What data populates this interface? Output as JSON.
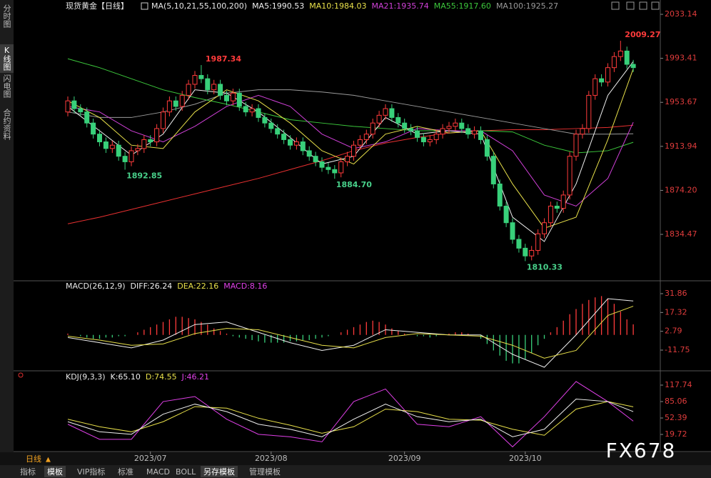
{
  "header": {
    "title": "现货黄金【日线】"
  },
  "sidebar": [
    "分时图",
    "K线图",
    "闪电图",
    "合约资料"
  ],
  "footer": {
    "period": "日线",
    "tabs": [
      "指标",
      "模板",
      "VIP指标",
      "标准",
      "MACD",
      "BOLL",
      "另存模板",
      "管理模板"
    ]
  },
  "watermark": "FX678",
  "chart_data": [
    {
      "type": "candlestick",
      "title": "MA(5,10,21,55,100,200)",
      "up_color": "#ff3b3b",
      "down_color": "#38d07a",
      "open": [
        1945,
        1955,
        1948,
        1945,
        1935,
        1925,
        1918,
        1912,
        1915,
        1905,
        1900,
        1910,
        1912,
        1920,
        1918,
        1930,
        1945,
        1955,
        1950,
        1960,
        1970,
        1978,
        1975,
        1965,
        1970,
        1960,
        1955,
        1962,
        1950,
        1945,
        1948,
        1940,
        1935,
        1930,
        1925,
        1920,
        1915,
        1918,
        1910,
        1905,
        1900,
        1895,
        1893,
        1890,
        1900,
        1905,
        1915,
        1920,
        1925,
        1935,
        1942,
        1948,
        1940,
        1935,
        1930,
        1928,
        1922,
        1918,
        1920,
        1925,
        1930,
        1932,
        1935,
        1930,
        1925,
        1928,
        1920,
        1905,
        1880,
        1860,
        1845,
        1830,
        1822,
        1815,
        1820,
        1835,
        1845,
        1860,
        1858,
        1870,
        1905,
        1925,
        1930,
        1960,
        1975,
        1972,
        1985,
        1995,
        2000,
        1988
      ],
      "high": [
        1959,
        1959,
        1952,
        1949,
        1939,
        1929,
        1922,
        1919,
        1919,
        1909,
        1914,
        1916,
        1924,
        1924,
        1934,
        1949,
        1959,
        1959,
        1964,
        1974,
        1982,
        1987.34,
        1979,
        1974,
        1974,
        1964,
        1966,
        1966,
        1954,
        1952,
        1952,
        1944,
        1939,
        1934,
        1929,
        1924,
        1922,
        1922,
        1914,
        1909,
        1904,
        1899,
        1897,
        1904,
        1909,
        1919,
        1924,
        1929,
        1939,
        1946,
        1952,
        1952,
        1944,
        1939,
        1934,
        1932,
        1926,
        1924,
        1929,
        1934,
        1936,
        1939,
        1939,
        1934,
        1932,
        1932,
        1924,
        1909,
        1884,
        1864,
        1849,
        1834,
        1826,
        1824,
        1839,
        1849,
        1864,
        1864,
        1874,
        1909,
        1929,
        1934,
        1964,
        1979,
        1979,
        1989,
        1999,
        2009.27,
        2004,
        1992
      ],
      "low": [
        1941,
        1944,
        1941,
        1931,
        1921,
        1914,
        1908,
        1908,
        1901,
        1892.85,
        1896,
        1906,
        1908,
        1914,
        1914,
        1926,
        1941,
        1946,
        1946,
        1956,
        1966,
        1971,
        1961,
        1961,
        1956,
        1951,
        1951,
        1946,
        1941,
        1941,
        1936,
        1931,
        1926,
        1921,
        1916,
        1911,
        1911,
        1906,
        1901,
        1896,
        1891,
        1889,
        1884.7,
        1886,
        1896,
        1901,
        1911,
        1916,
        1921,
        1931,
        1938,
        1936,
        1931,
        1926,
        1924,
        1918,
        1914,
        1914,
        1916,
        1921,
        1926,
        1928,
        1926,
        1921,
        1921,
        1916,
        1901,
        1876,
        1856,
        1841,
        1826,
        1818,
        1810.33,
        1811,
        1816,
        1831,
        1841,
        1854,
        1854,
        1866,
        1901,
        1921,
        1926,
        1956,
        1968,
        1968,
        1981,
        1991,
        1984,
        1981
      ],
      "close": [
        1955,
        1948,
        1945,
        1935,
        1925,
        1918,
        1912,
        1915,
        1905,
        1900,
        1910,
        1912,
        1920,
        1918,
        1930,
        1945,
        1955,
        1950,
        1960,
        1970,
        1978,
        1975,
        1965,
        1970,
        1960,
        1955,
        1962,
        1950,
        1945,
        1948,
        1940,
        1935,
        1930,
        1925,
        1920,
        1915,
        1918,
        1910,
        1905,
        1900,
        1895,
        1893,
        1890,
        1900,
        1905,
        1915,
        1920,
        1925,
        1935,
        1942,
        1948,
        1940,
        1935,
        1930,
        1928,
        1922,
        1918,
        1920,
        1925,
        1930,
        1932,
        1935,
        1930,
        1925,
        1928,
        1920,
        1905,
        1880,
        1860,
        1845,
        1830,
        1822,
        1815,
        1820,
        1835,
        1845,
        1860,
        1858,
        1870,
        1905,
        1925,
        1930,
        1960,
        1975,
        1972,
        1985,
        1995,
        2000,
        1988,
        1985
      ],
      "ylim": [
        1793.2,
        2036.4
      ],
      "yticks": [
        1834.47,
        {
          "value": 1874.2,
          "label": "1874.20"
        },
        1913.94,
        1953.67,
        1993.41,
        2033.14
      ],
      "series": [
        {
          "name": "MA5:1990.53",
          "color": "#f0f0f0",
          "x": [
            0,
            5,
            10,
            15,
            20,
            25,
            30,
            35,
            40,
            45,
            50,
            55,
            60,
            65,
            70,
            75,
            80,
            85,
            89
          ],
          "values": [
            1950,
            1928,
            1906,
            1925,
            1965,
            1962,
            1945,
            1922,
            1898,
            1905,
            1940,
            1925,
            1928,
            1925,
            1850,
            1828,
            1880,
            1960,
            1990.53
          ]
        },
        {
          "name": "MA10:1984.03",
          "color": "#e8e04a",
          "x": [
            0,
            5,
            10,
            15,
            20,
            25,
            30,
            35,
            40,
            45,
            50,
            55,
            60,
            65,
            70,
            75,
            80,
            85,
            89
          ],
          "values": [
            1955,
            1940,
            1915,
            1912,
            1945,
            1965,
            1955,
            1935,
            1910,
            1898,
            1925,
            1932,
            1926,
            1928,
            1880,
            1840,
            1850,
            1920,
            1984.03
          ]
        },
        {
          "name": "MA21:1935.74",
          "color": "#d040d8",
          "x": [
            0,
            5,
            10,
            15,
            20,
            25,
            30,
            35,
            40,
            45,
            50,
            55,
            60,
            65,
            70,
            75,
            80,
            85,
            89
          ],
          "values": [
            1950,
            1945,
            1928,
            1918,
            1932,
            1950,
            1960,
            1950,
            1925,
            1912,
            1918,
            1930,
            1928,
            1928,
            1910,
            1870,
            1860,
            1885,
            1935.74
          ]
        },
        {
          "name": "MA55:1917.60",
          "color": "#3cc83c",
          "x": [
            0,
            5,
            10,
            15,
            20,
            25,
            30,
            35,
            40,
            45,
            50,
            55,
            60,
            65,
            70,
            75,
            80,
            85,
            89
          ],
          "values": [
            1993,
            1985,
            1975,
            1965,
            1958,
            1952,
            1945,
            1938,
            1935,
            1932,
            1930,
            1928,
            1928,
            1928,
            1927,
            1915,
            1908,
            1910,
            1917.6
          ]
        },
        {
          "name": "MA100:1925.27",
          "color": "#9a9a9a",
          "x": [
            0,
            5,
            10,
            15,
            20,
            25,
            30,
            35,
            40,
            45,
            50,
            55,
            60,
            65,
            70,
            75,
            80,
            85,
            89
          ],
          "values": [
            1945,
            1940,
            1940,
            1945,
            1952,
            1962,
            1965,
            1965,
            1963,
            1960,
            1955,
            1950,
            1945,
            1940,
            1935,
            1930,
            1925,
            1925,
            1925.27
          ]
        },
        {
          "color": "#e83030",
          "x": [
            0,
            5,
            10,
            15,
            20,
            25,
            30,
            35,
            40,
            45,
            50,
            55,
            60,
            65,
            70,
            75,
            80,
            85,
            89
          ],
          "values": [
            1844,
            1850,
            1857,
            1864,
            1871,
            1878,
            1885,
            1893,
            1901,
            1910,
            1917,
            1922,
            1926,
            1928,
            1929,
            1929,
            1930,
            1931,
            1933
          ]
        }
      ],
      "annotations": [
        {
          "x": 87,
          "value": 2009.27,
          "label": "2009.27",
          "color": "#ff3b3b"
        },
        {
          "x": 21,
          "value": 1987.34,
          "label": "1987.34",
          "color": "#ff3b3b"
        },
        {
          "x": 9,
          "value": 1892.85,
          "label": "1892.85",
          "color": "#48d08a"
        },
        {
          "x": 42,
          "value": 1884.7,
          "label": "1884.70",
          "color": "#48d08a"
        },
        {
          "x": 72,
          "value": 1810.33,
          "label": "1810.33",
          "color": "#48d08a"
        }
      ]
    },
    {
      "type": "macd",
      "title": "MACD(26,12,9)",
      "ylim": [
        -27.2,
        40.7
      ],
      "yticks": [
        31.86,
        17.32,
        2.79,
        -11.75
      ],
      "series": [
        {
          "name": "DIFF:26.24",
          "color": "#f0f0f0",
          "x": [
            0,
            5,
            10,
            15,
            20,
            25,
            30,
            35,
            40,
            45,
            50,
            55,
            60,
            65,
            70,
            75,
            80,
            85,
            89
          ],
          "values": [
            -2,
            -6,
            -10,
            -4,
            8,
            10,
            2,
            -6,
            -12,
            -8,
            4,
            2,
            0,
            0,
            -15,
            -25,
            0,
            28,
            26.24
          ]
        },
        {
          "name": "DEA:22.16",
          "color": "#e8e04a",
          "x": [
            0,
            5,
            10,
            15,
            20,
            25,
            30,
            35,
            40,
            45,
            50,
            55,
            60,
            65,
            70,
            75,
            80,
            85,
            89
          ],
          "values": [
            -1,
            -4,
            -8,
            -7,
            1,
            5,
            4,
            -2,
            -8,
            -10,
            -2,
            1,
            0,
            -1,
            -8,
            -18,
            -12,
            15,
            22.16
          ]
        }
      ],
      "histogram": {
        "name": "MACD:8.16",
        "color": "#e040e8",
        "up_color": "#ff3b3b",
        "down_color": "#38d07a",
        "values": [
          1,
          0,
          -1,
          -2,
          -3,
          -3,
          -2,
          -2,
          -1,
          -1,
          0,
          2,
          4,
          6,
          8,
          10,
          12,
          14,
          14,
          13,
          12,
          10,
          8,
          5,
          3,
          1,
          -1,
          -2,
          -3,
          -4,
          -5,
          -6,
          -6,
          -6,
          -6,
          -5,
          -5,
          -4,
          -4,
          -3,
          -2,
          -1,
          0,
          2,
          4,
          6,
          8,
          10,
          11,
          10,
          8,
          5,
          3,
          1,
          0,
          -1,
          -1,
          -2,
          -1,
          0,
          1,
          2,
          2,
          1,
          0,
          -3,
          -7,
          -12,
          -16,
          -20,
          -22,
          -22,
          -19,
          -14,
          -8,
          -3,
          2,
          6,
          11,
          16,
          20,
          24,
          27,
          29,
          30,
          28,
          24,
          18,
          12,
          8.16
        ]
      }
    },
    {
      "type": "line",
      "title": "KDJ(9,3,3)",
      "ylim": [
        -11.5,
        141.9
      ],
      "yticks": [
        117.74,
        85.06,
        52.39,
        19.72
      ],
      "xticks": [
        {
          "value": 13,
          "label": "2023/07"
        },
        {
          "value": 32,
          "label": "2023/08"
        },
        {
          "value": 53,
          "label": "2023/09"
        },
        {
          "value": 72,
          "label": "2023/10"
        }
      ],
      "series": [
        {
          "name": "K:65.10",
          "color": "#f0f0f0",
          "x": [
            0,
            5,
            10,
            15,
            20,
            25,
            30,
            35,
            40,
            45,
            50,
            55,
            60,
            65,
            70,
            75,
            80,
            85,
            89
          ],
          "values": [
            45,
            25,
            20,
            60,
            80,
            65,
            40,
            30,
            15,
            50,
            80,
            55,
            45,
            50,
            15,
            30,
            90,
            85,
            65.1
          ]
        },
        {
          "name": "D:74.55",
          "color": "#e8e04a",
          "x": [
            0,
            5,
            10,
            15,
            20,
            25,
            30,
            35,
            40,
            45,
            50,
            55,
            60,
            65,
            70,
            75,
            80,
            85,
            89
          ],
          "values": [
            50,
            35,
            25,
            45,
            75,
            72,
            52,
            38,
            22,
            35,
            70,
            65,
            50,
            48,
            30,
            18,
            70,
            85,
            74.55
          ]
        },
        {
          "name": "J:46.21",
          "color": "#e040e8",
          "x": [
            0,
            5,
            10,
            15,
            20,
            25,
            30,
            35,
            40,
            45,
            50,
            55,
            60,
            65,
            70,
            75,
            80,
            85,
            89
          ],
          "values": [
            40,
            10,
            10,
            85,
            95,
            50,
            20,
            15,
            5,
            85,
            110,
            40,
            35,
            55,
            -5,
            55,
            125,
            85,
            46.21
          ]
        }
      ]
    }
  ]
}
